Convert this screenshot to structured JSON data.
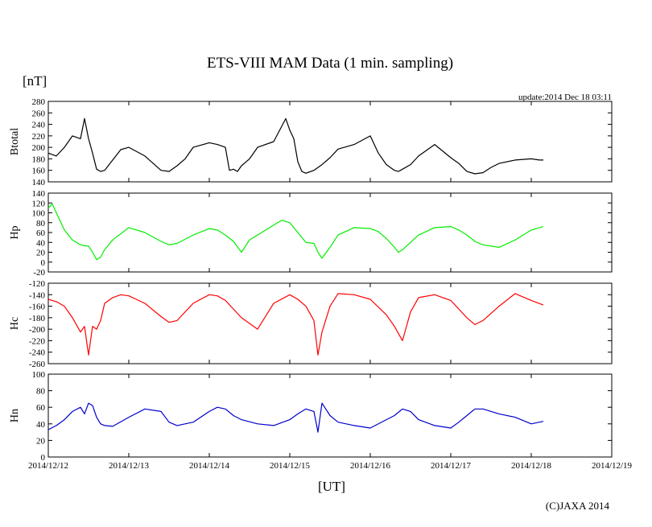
{
  "title": "ETS-VIII MAM Data (1 min. sampling)",
  "unit_label": "[nT]",
  "update_label": "update:2014 Dec 18 03:11",
  "xlabel": "[UT]",
  "copyright": "(C)JAXA 2014",
  "x_ticks": [
    "2014/12/12",
    "2014/12/13",
    "2014/12/14",
    "2014/12/15",
    "2014/12/16",
    "2014/12/17",
    "2014/12/18",
    "2014/12/19"
  ],
  "chart_data": [
    {
      "type": "line",
      "ylabel": "Btotal",
      "ylim": [
        140,
        280
      ],
      "yticks": [
        140,
        160,
        180,
        200,
        220,
        240,
        260,
        280
      ],
      "color": "#000000",
      "x_unit": "days since 2014/12/12 00:00 UT",
      "x": [
        0,
        0.1,
        0.2,
        0.3,
        0.4,
        0.45,
        0.5,
        0.55,
        0.6,
        0.65,
        0.7,
        0.8,
        0.9,
        1.0,
        1.2,
        1.4,
        1.5,
        1.6,
        1.7,
        1.8,
        2.0,
        2.1,
        2.2,
        2.25,
        2.3,
        2.35,
        2.4,
        2.5,
        2.6,
        2.8,
        2.95,
        3.0,
        3.05,
        3.1,
        3.15,
        3.2,
        3.3,
        3.4,
        3.5,
        3.6,
        3.8,
        4.0,
        4.1,
        4.2,
        4.3,
        4.35,
        4.4,
        4.5,
        4.6,
        4.8,
        5.0,
        5.1,
        5.2,
        5.3,
        5.4,
        5.5,
        5.6,
        5.8,
        6.0,
        6.1,
        6.15
      ],
      "y": [
        190,
        185,
        200,
        220,
        215,
        250,
        215,
        190,
        162,
        158,
        160,
        178,
        196,
        200,
        185,
        160,
        158,
        168,
        180,
        200,
        208,
        205,
        200,
        160,
        162,
        158,
        168,
        180,
        200,
        210,
        250,
        230,
        215,
        175,
        158,
        155,
        160,
        170,
        182,
        197,
        205,
        220,
        190,
        170,
        160,
        158,
        162,
        170,
        185,
        205,
        182,
        172,
        158,
        154,
        156,
        165,
        172,
        178,
        180,
        178,
        178
      ]
    },
    {
      "type": "line",
      "ylabel": "Hp",
      "ylim": [
        -20,
        140
      ],
      "yticks": [
        -20,
        0,
        20,
        40,
        60,
        80,
        100,
        120,
        140
      ],
      "color": "#00ee00",
      "x_unit": "days since 2014/12/12 00:00 UT",
      "x": [
        0,
        0.05,
        0.1,
        0.2,
        0.3,
        0.4,
        0.5,
        0.55,
        0.6,
        0.65,
        0.7,
        0.8,
        1.0,
        1.2,
        1.4,
        1.5,
        1.6,
        1.8,
        2.0,
        2.1,
        2.2,
        2.3,
        2.4,
        2.5,
        2.7,
        2.9,
        3.0,
        3.1,
        3.2,
        3.3,
        3.35,
        3.4,
        3.5,
        3.6,
        3.8,
        4.0,
        4.1,
        4.2,
        4.3,
        4.35,
        4.4,
        4.5,
        4.6,
        4.8,
        5.0,
        5.1,
        5.2,
        5.3,
        5.4,
        5.6,
        5.8,
        6.0,
        6.15
      ],
      "y": [
        110,
        118,
        100,
        65,
        45,
        35,
        32,
        20,
        5,
        10,
        25,
        45,
        70,
        60,
        42,
        35,
        38,
        55,
        68,
        65,
        55,
        42,
        20,
        45,
        65,
        85,
        80,
        60,
        40,
        38,
        20,
        8,
        30,
        55,
        70,
        68,
        62,
        48,
        30,
        20,
        25,
        40,
        55,
        70,
        72,
        65,
        55,
        42,
        35,
        30,
        45,
        65,
        72
      ]
    },
    {
      "type": "line",
      "ylabel": "Hc",
      "ylim": [
        -260,
        -120
      ],
      "yticks": [
        -260,
        -240,
        -220,
        -200,
        -180,
        -160,
        -140,
        -120
      ],
      "color": "#ff0000",
      "x_unit": "days since 2014/12/12 00:00 UT",
      "x": [
        0,
        0.1,
        0.2,
        0.3,
        0.4,
        0.45,
        0.5,
        0.55,
        0.6,
        0.65,
        0.7,
        0.8,
        0.9,
        1.0,
        1.2,
        1.4,
        1.5,
        1.6,
        1.8,
        2.0,
        2.1,
        2.2,
        2.3,
        2.4,
        2.5,
        2.6,
        2.8,
        3.0,
        3.1,
        3.2,
        3.3,
        3.35,
        3.4,
        3.5,
        3.6,
        3.8,
        4.0,
        4.2,
        4.3,
        4.4,
        4.5,
        4.6,
        4.8,
        5.0,
        5.2,
        5.3,
        5.4,
        5.6,
        5.8,
        6.0,
        6.15
      ],
      "y": [
        -148,
        -152,
        -160,
        -180,
        -205,
        -195,
        -245,
        -195,
        -200,
        -185,
        -155,
        -145,
        -140,
        -142,
        -155,
        -178,
        -188,
        -185,
        -155,
        -140,
        -142,
        -150,
        -165,
        -180,
        -190,
        -200,
        -155,
        -140,
        -148,
        -160,
        -185,
        -245,
        -205,
        -160,
        -138,
        -140,
        -148,
        -175,
        -195,
        -220,
        -170,
        -145,
        -140,
        -150,
        -180,
        -192,
        -185,
        -160,
        -138,
        -150,
        -158
      ]
    },
    {
      "type": "line",
      "ylabel": "Hn",
      "ylim": [
        0,
        100
      ],
      "yticks": [
        0,
        20,
        40,
        60,
        80,
        100
      ],
      "color": "#0000cc",
      "x_unit": "days since 2014/12/12 00:00 UT",
      "x": [
        0,
        0.1,
        0.2,
        0.3,
        0.4,
        0.45,
        0.5,
        0.55,
        0.6,
        0.65,
        0.7,
        0.8,
        1.0,
        1.2,
        1.4,
        1.5,
        1.6,
        1.8,
        2.0,
        2.1,
        2.2,
        2.3,
        2.4,
        2.6,
        2.8,
        3.0,
        3.1,
        3.2,
        3.3,
        3.35,
        3.4,
        3.5,
        3.6,
        3.8,
        4.0,
        4.2,
        4.3,
        4.4,
        4.5,
        4.6,
        4.8,
        5.0,
        5.1,
        5.2,
        5.3,
        5.4,
        5.6,
        5.8,
        6.0,
        6.15
      ],
      "y": [
        33,
        38,
        45,
        55,
        60,
        52,
        65,
        62,
        48,
        40,
        38,
        37,
        48,
        58,
        55,
        42,
        38,
        42,
        55,
        60,
        58,
        50,
        45,
        40,
        38,
        45,
        52,
        58,
        55,
        30,
        65,
        50,
        42,
        38,
        35,
        45,
        50,
        58,
        55,
        45,
        38,
        35,
        42,
        50,
        58,
        58,
        52,
        48,
        40,
        43
      ]
    }
  ]
}
